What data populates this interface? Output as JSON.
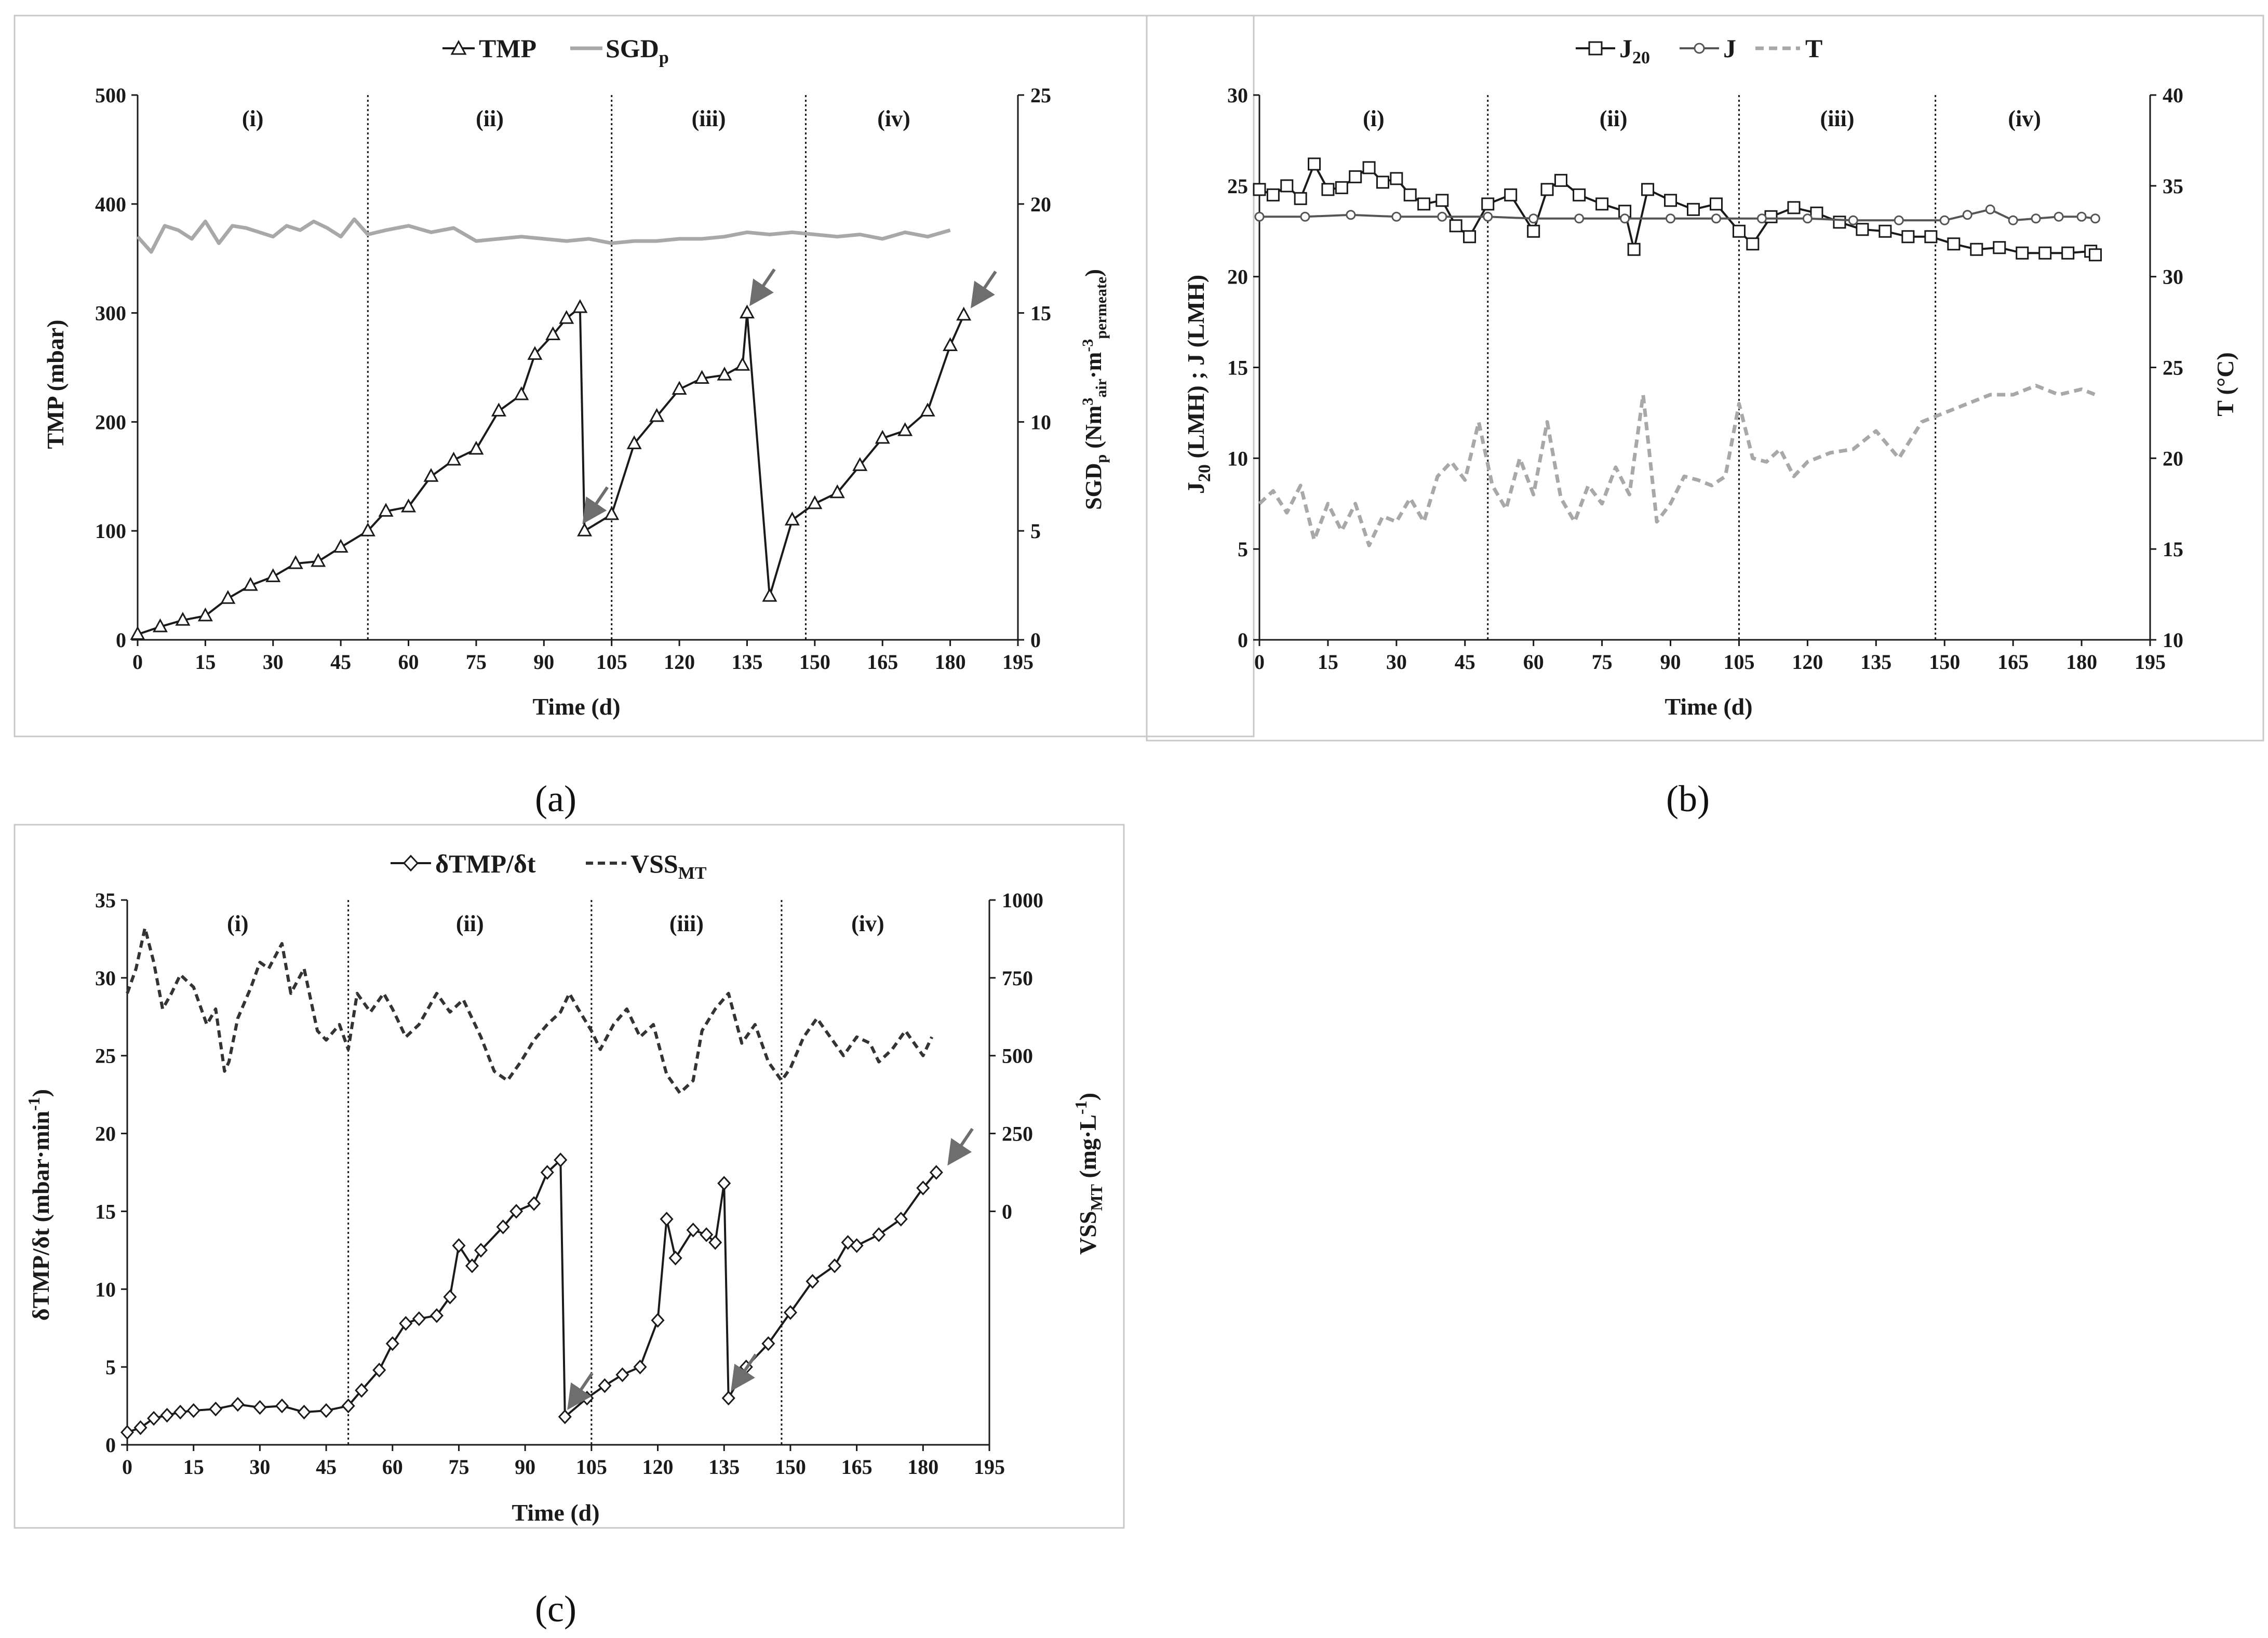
{
  "captions": {
    "a": "(a)",
    "b": "(b)",
    "c": "(c)"
  },
  "colors": {
    "black": "#1a1a1a",
    "light_gray": "#a8a8a8",
    "mid_gray": "#555555",
    "dark_dash": "#333333",
    "arrow": "#6e6e6e"
  },
  "chart_data": [
    {
      "id": "a",
      "type": "line",
      "title": "",
      "xlabel": "Time (d)",
      "ylabel": "TMP (mbar)",
      "ylabel2": "SGDp (Nm3air·m-3permeate)",
      "xlim": [
        0,
        195
      ],
      "xticks": [
        0,
        15,
        30,
        45,
        60,
        75,
        90,
        105,
        120,
        135,
        150,
        165,
        180,
        195
      ],
      "ylim": [
        0,
        500
      ],
      "yticks": [
        0,
        100,
        200,
        300,
        400,
        500
      ],
      "ylim2": [
        0,
        25
      ],
      "yticks2": [
        0,
        5,
        10,
        15,
        20,
        25
      ],
      "period_bounds": [
        51,
        105,
        148
      ],
      "periods": [
        "(i)",
        "(ii)",
        "(iii)",
        "(iv)"
      ],
      "arrows_x": [
        99,
        136,
        185
      ],
      "series": [
        {
          "name": "TMP",
          "axis": "left",
          "style": "triangle",
          "color": "#1a1a1a",
          "x": [
            0,
            5,
            10,
            15,
            20,
            25,
            30,
            35,
            40,
            45,
            51,
            55,
            60,
            65,
            70,
            75,
            80,
            85,
            88,
            92,
            95,
            98,
            99,
            105,
            110,
            115,
            120,
            125,
            130,
            134,
            135,
            140,
            145,
            150,
            155,
            160,
            165,
            170,
            175,
            180,
            183
          ],
          "y": [
            5,
            12,
            18,
            22,
            38,
            50,
            58,
            70,
            72,
            85,
            100,
            118,
            122,
            150,
            165,
            175,
            210,
            225,
            262,
            280,
            295,
            305,
            100,
            115,
            180,
            205,
            230,
            240,
            243,
            252,
            300,
            40,
            110,
            125,
            135,
            160,
            185,
            192,
            210,
            270,
            298
          ]
        },
        {
          "name": "SGDp",
          "axis": "right",
          "style": "solid-gray",
          "color": "#a8a8a8",
          "x": [
            0,
            3,
            6,
            9,
            12,
            15,
            18,
            21,
            24,
            27,
            30,
            33,
            36,
            39,
            42,
            45,
            48,
            51,
            55,
            60,
            65,
            70,
            75,
            80,
            85,
            90,
            95,
            100,
            105,
            110,
            115,
            120,
            125,
            130,
            135,
            140,
            145,
            150,
            155,
            160,
            165,
            170,
            175,
            180
          ],
          "y": [
            18.5,
            17.8,
            19.0,
            18.8,
            18.4,
            19.2,
            18.2,
            19.0,
            18.9,
            18.7,
            18.5,
            19.0,
            18.8,
            19.2,
            18.9,
            18.5,
            19.3,
            18.6,
            18.8,
            19.0,
            18.7,
            18.9,
            18.3,
            18.4,
            18.5,
            18.4,
            18.3,
            18.4,
            18.2,
            18.3,
            18.3,
            18.4,
            18.4,
            18.5,
            18.7,
            18.6,
            18.7,
            18.6,
            18.5,
            18.6,
            18.4,
            18.7,
            18.5,
            18.8
          ]
        }
      ],
      "legend": {
        "placement": "top-center",
        "entries": [
          "TMP",
          "SGDp"
        ]
      }
    },
    {
      "id": "b",
      "type": "line",
      "title": "",
      "xlabel": "Time (d)",
      "ylabel": "J20 (LMH) ; J (LMH)",
      "ylabel2": "T (°C)",
      "xlim": [
        0,
        195
      ],
      "xticks": [
        0,
        15,
        30,
        45,
        60,
        75,
        90,
        105,
        120,
        135,
        150,
        165,
        180,
        195
      ],
      "ylim": [
        0,
        30
      ],
      "yticks": [
        0,
        5,
        10,
        15,
        20,
        25,
        30
      ],
      "ylim2": [
        10,
        40
      ],
      "yticks2": [
        10,
        15,
        20,
        25,
        30,
        35,
        40
      ],
      "period_bounds": [
        50,
        105,
        148
      ],
      "periods": [
        "(i)",
        "(ii)",
        "(iii)",
        "(iv)"
      ],
      "series": [
        {
          "name": "J20",
          "axis": "left",
          "style": "square",
          "color": "#1a1a1a",
          "x": [
            0,
            3,
            6,
            9,
            12,
            15,
            18,
            21,
            24,
            27,
            30,
            33,
            36,
            40,
            43,
            46,
            50,
            55,
            60,
            63,
            66,
            70,
            75,
            80,
            82,
            85,
            90,
            95,
            100,
            105,
            108,
            112,
            117,
            122,
            127,
            132,
            137,
            142,
            147,
            152,
            157,
            162,
            167,
            172,
            177,
            182,
            183
          ],
          "y": [
            24.8,
            24.5,
            25.0,
            24.3,
            26.2,
            24.8,
            24.9,
            25.5,
            26.0,
            25.2,
            25.4,
            24.5,
            24.0,
            24.2,
            22.8,
            22.2,
            24.0,
            24.5,
            22.5,
            24.8,
            25.3,
            24.5,
            24.0,
            23.6,
            21.5,
            24.8,
            24.2,
            23.7,
            24.0,
            22.5,
            21.8,
            23.3,
            23.8,
            23.5,
            23.0,
            22.6,
            22.5,
            22.2,
            22.2,
            21.8,
            21.5,
            21.6,
            21.3,
            21.3,
            21.3,
            21.4,
            21.2
          ]
        },
        {
          "name": "J",
          "axis": "left",
          "style": "circle",
          "color": "#555555",
          "x": [
            0,
            10,
            20,
            30,
            40,
            50,
            60,
            70,
            80,
            90,
            100,
            110,
            120,
            130,
            140,
            150,
            155,
            160,
            165,
            170,
            175,
            180,
            183
          ],
          "y": [
            23.3,
            23.3,
            23.4,
            23.3,
            23.3,
            23.3,
            23.2,
            23.2,
            23.2,
            23.2,
            23.2,
            23.2,
            23.2,
            23.1,
            23.1,
            23.1,
            23.4,
            23.7,
            23.1,
            23.2,
            23.3,
            23.3,
            23.2
          ]
        },
        {
          "name": "T",
          "axis": "right",
          "style": "dashed-gray",
          "color": "#a8a8a8",
          "x": [
            0,
            3,
            6,
            9,
            12,
            15,
            18,
            21,
            24,
            27,
            30,
            33,
            36,
            39,
            42,
            45,
            48,
            51,
            54,
            57,
            60,
            63,
            66,
            69,
            72,
            75,
            78,
            81,
            84,
            87,
            90,
            93,
            96,
            99,
            102,
            105,
            108,
            111,
            114,
            117,
            120,
            125,
            130,
            135,
            140,
            145,
            150,
            155,
            160,
            165,
            170,
            175,
            180,
            183
          ],
          "y": [
            17.5,
            18.2,
            17.0,
            18.5,
            15.5,
            17.5,
            16.0,
            17.5,
            15.2,
            16.8,
            16.5,
            17.8,
            16.5,
            19.0,
            19.8,
            18.8,
            22.0,
            18.5,
            17.2,
            20.0,
            18.0,
            22.0,
            17.8,
            16.5,
            18.5,
            17.5,
            19.5,
            18.0,
            23.5,
            16.5,
            17.5,
            19.0,
            18.8,
            18.5,
            19.0,
            23.0,
            20.0,
            19.8,
            20.5,
            19.0,
            19.8,
            20.3,
            20.5,
            21.5,
            20.0,
            22.0,
            22.5,
            23.0,
            23.5,
            23.5,
            24.0,
            23.5,
            23.8,
            23.5
          ]
        }
      ],
      "legend": {
        "placement": "top-center",
        "entries": [
          "J20",
          "J",
          "T"
        ]
      }
    },
    {
      "id": "c",
      "type": "line",
      "title": "",
      "xlabel": "Time (d)",
      "ylabel": "δTMP/δt (mbar·min-1)",
      "ylabel2": "VSSMT (mg·L-1)",
      "xlim": [
        0,
        195
      ],
      "xticks": [
        0,
        15,
        30,
        45,
        60,
        75,
        90,
        105,
        120,
        135,
        150,
        165,
        180,
        195
      ],
      "ylim": [
        0,
        35
      ],
      "yticks": [
        0,
        5,
        10,
        15,
        20,
        25,
        30,
        35
      ],
      "ylim2": [
        -750,
        1000
      ],
      "yticks2": [
        0,
        250,
        500,
        750,
        1000
      ],
      "period_bounds": [
        50,
        105,
        148
      ],
      "periods": [
        "(i)",
        "(ii)",
        "(iii)",
        "(iv)"
      ],
      "arrows_x": [
        100,
        137,
        186
      ],
      "series": [
        {
          "name": "δTMP/δt",
          "axis": "left",
          "style": "diamond",
          "color": "#1a1a1a",
          "x": [
            0,
            3,
            6,
            9,
            12,
            15,
            20,
            25,
            30,
            35,
            40,
            45,
            50,
            53,
            57,
            60,
            63,
            66,
            70,
            73,
            75,
            78,
            80,
            85,
            88,
            92,
            95,
            98,
            99,
            104,
            108,
            112,
            116,
            120,
            122,
            124,
            128,
            131,
            133,
            135,
            136,
            140,
            145,
            150,
            155,
            160,
            163,
            165,
            170,
            175,
            180,
            183
          ],
          "y": [
            0.8,
            1.1,
            1.7,
            1.9,
            2.1,
            2.2,
            2.3,
            2.6,
            2.4,
            2.5,
            2.1,
            2.2,
            2.5,
            3.5,
            4.8,
            6.5,
            7.8,
            8.1,
            8.3,
            9.5,
            12.8,
            11.5,
            12.5,
            14.0,
            15.0,
            15.5,
            17.5,
            18.3,
            1.8,
            3.0,
            3.8,
            4.5,
            5.0,
            8.0,
            14.5,
            12.0,
            13.8,
            13.5,
            13.0,
            16.8,
            3.0,
            5.0,
            6.5,
            8.5,
            10.5,
            11.5,
            13.0,
            12.8,
            13.5,
            14.5,
            16.5,
            17.5
          ]
        },
        {
          "name": "VSSMT",
          "axis": "right",
          "style": "dashed-dark",
          "color": "#333333",
          "x": [
            0,
            2,
            4,
            6,
            8,
            10,
            12,
            15,
            18,
            20,
            22,
            23,
            25,
            28,
            30,
            32,
            35,
            37,
            40,
            43,
            45,
            48,
            50,
            52,
            55,
            58,
            60,
            63,
            66,
            70,
            73,
            76,
            80,
            83,
            86,
            89,
            92,
            95,
            98,
            100,
            102,
            105,
            107,
            110,
            113,
            116,
            119,
            122,
            125,
            128,
            130,
            133,
            136,
            139,
            142,
            145,
            148,
            150,
            153,
            156,
            159,
            162,
            165,
            168,
            170,
            173,
            176,
            178,
            180,
            182
          ],
          "y": [
            700,
            780,
            910,
            800,
            650,
            700,
            760,
            720,
            600,
            650,
            450,
            480,
            620,
            720,
            800,
            780,
            860,
            700,
            780,
            580,
            550,
            600,
            520,
            700,
            640,
            700,
            650,
            560,
            600,
            700,
            640,
            680,
            560,
            450,
            420,
            480,
            550,
            600,
            640,
            700,
            650,
            580,
            520,
            600,
            650,
            560,
            600,
            440,
            380,
            420,
            580,
            650,
            700,
            540,
            600,
            480,
            420,
            460,
            560,
            620,
            560,
            500,
            560,
            540,
            480,
            520,
            580,
            540,
            500,
            560
          ]
        }
      ],
      "legend": {
        "placement": "top-center",
        "entries": [
          "δTMP/δt",
          "VSSMT"
        ]
      }
    }
  ]
}
